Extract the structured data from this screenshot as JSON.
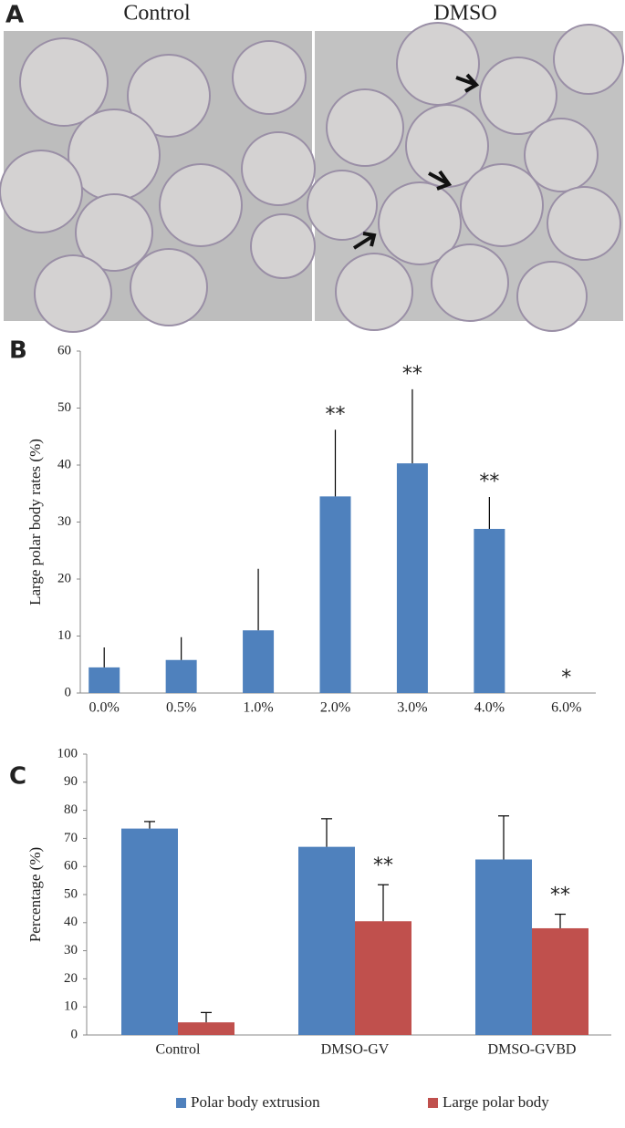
{
  "panel_a": {
    "letter": "A",
    "left_label": "Control",
    "right_label": "DMSO"
  },
  "chart_data": [
    {
      "type": "bar",
      "panel": "B",
      "ylabel": "Large polar body rates (%)",
      "categories": [
        "0.0%",
        "0.5%",
        "1.0%",
        "2.0%",
        "3.0%",
        "4.0%",
        "6.0%"
      ],
      "values": [
        4.5,
        5.8,
        11,
        34.5,
        40.3,
        28.8,
        0
      ],
      "errors": [
        3.5,
        4,
        10.8,
        11.7,
        13,
        5.6,
        0
      ],
      "significance": [
        null,
        null,
        null,
        "**",
        "**",
        "**",
        "*"
      ],
      "color": "#4f81bd",
      "ylim": [
        0,
        60
      ],
      "yticks": [
        0,
        10,
        20,
        30,
        40,
        50,
        60
      ]
    },
    {
      "type": "grouped_bar",
      "panel": "C",
      "ylabel": "Percentage (%)",
      "categories": [
        "Control",
        "DMSO-GV",
        "DMSO-GVBD"
      ],
      "series": [
        {
          "name": "Polar body extrusion",
          "color": "#4f81bd",
          "values": [
            73.5,
            67,
            62.5
          ],
          "errors": [
            2.5,
            10,
            15.5
          ]
        },
        {
          "name": "Large polar body",
          "color": "#c0504d",
          "values": [
            4.5,
            40.5,
            38
          ],
          "errors": [
            3.5,
            13,
            5
          ],
          "significance": [
            null,
            "**",
            "**"
          ]
        }
      ],
      "ylim": [
        0,
        100
      ],
      "yticks": [
        0,
        10,
        20,
        30,
        40,
        50,
        60,
        70,
        80,
        90,
        100
      ],
      "legend": "bottom"
    }
  ]
}
